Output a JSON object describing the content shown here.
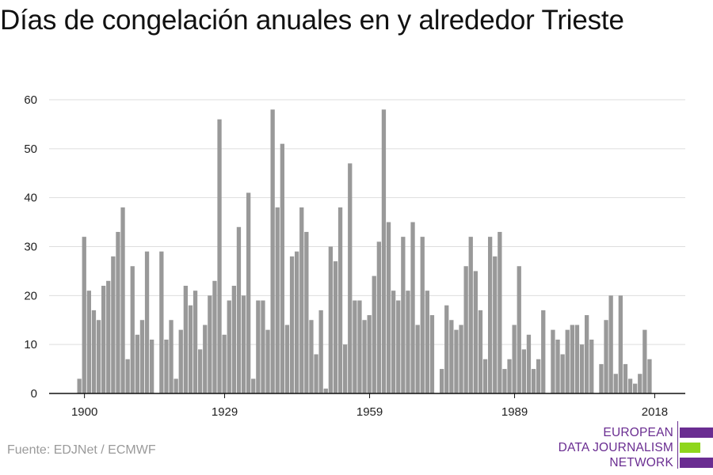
{
  "title": "Días de congelación anuales en y alrededor Trieste",
  "source": "Fuente: EDJNet / ECMWF",
  "logo": {
    "line1": "EUROPEAN",
    "line2": "DATA JOURNALISM",
    "line3": "NETWORK",
    "colors": {
      "purple": "#6a2d91",
      "green": "#8fd61c"
    }
  },
  "colors": {
    "bar": "#999999",
    "grid": "#dddddd",
    "axis": "#111111"
  },
  "chart_data": {
    "type": "bar",
    "title": "Días de congelación anuales en y alrededor Trieste",
    "xlabel": "",
    "ylabel": "",
    "x_ticks": [
      1900,
      1929,
      1959,
      1989,
      2018
    ],
    "y_ticks": [
      0,
      10,
      20,
      30,
      40,
      50,
      60
    ],
    "ylim": [
      0,
      60
    ],
    "grid": true,
    "x": [
      1899,
      1900,
      1901,
      1902,
      1903,
      1904,
      1905,
      1906,
      1907,
      1908,
      1909,
      1910,
      1911,
      1912,
      1913,
      1914,
      1915,
      1916,
      1917,
      1918,
      1919,
      1920,
      1921,
      1922,
      1923,
      1924,
      1925,
      1926,
      1927,
      1928,
      1929,
      1930,
      1931,
      1932,
      1933,
      1934,
      1935,
      1936,
      1937,
      1938,
      1939,
      1940,
      1941,
      1942,
      1943,
      1944,
      1945,
      1946,
      1947,
      1948,
      1949,
      1950,
      1951,
      1952,
      1953,
      1954,
      1955,
      1956,
      1957,
      1958,
      1959,
      1960,
      1961,
      1962,
      1963,
      1964,
      1965,
      1966,
      1967,
      1968,
      1969,
      1970,
      1971,
      1972,
      1973,
      1974,
      1975,
      1976,
      1977,
      1978,
      1979,
      1980,
      1981,
      1982,
      1983,
      1984,
      1985,
      1986,
      1987,
      1988,
      1989,
      1990,
      1991,
      1992,
      1993,
      1994,
      1995,
      1996,
      1997,
      1998,
      1999,
      2000,
      2001,
      2002,
      2003,
      2004,
      2005,
      2006,
      2007,
      2008,
      2009,
      2010,
      2011,
      2012,
      2013,
      2014,
      2015,
      2016,
      2017,
      2018
    ],
    "values": [
      3,
      32,
      21,
      17,
      15,
      22,
      23,
      28,
      33,
      38,
      7,
      26,
      12,
      15,
      29,
      11,
      0,
      29,
      11,
      15,
      3,
      13,
      22,
      18,
      21,
      9,
      14,
      20,
      23,
      56,
      12,
      19,
      22,
      34,
      20,
      41,
      3,
      19,
      19,
      13,
      58,
      38,
      51,
      14,
      28,
      29,
      38,
      33,
      15,
      8,
      17,
      1,
      30,
      27,
      38,
      10,
      47,
      19,
      19,
      15,
      16,
      24,
      31,
      58,
      35,
      21,
      19,
      32,
      21,
      35,
      14,
      32,
      21,
      16,
      0,
      5,
      18,
      15,
      13,
      14,
      26,
      32,
      25,
      17,
      7,
      32,
      28,
      33,
      5,
      7,
      14,
      26,
      9,
      12,
      5,
      7,
      17,
      0,
      13,
      11,
      8,
      13,
      14,
      14,
      10,
      16,
      11,
      0,
      6,
      15,
      20,
      4,
      20,
      6,
      3,
      2,
      4,
      13,
      7,
      0
    ]
  }
}
